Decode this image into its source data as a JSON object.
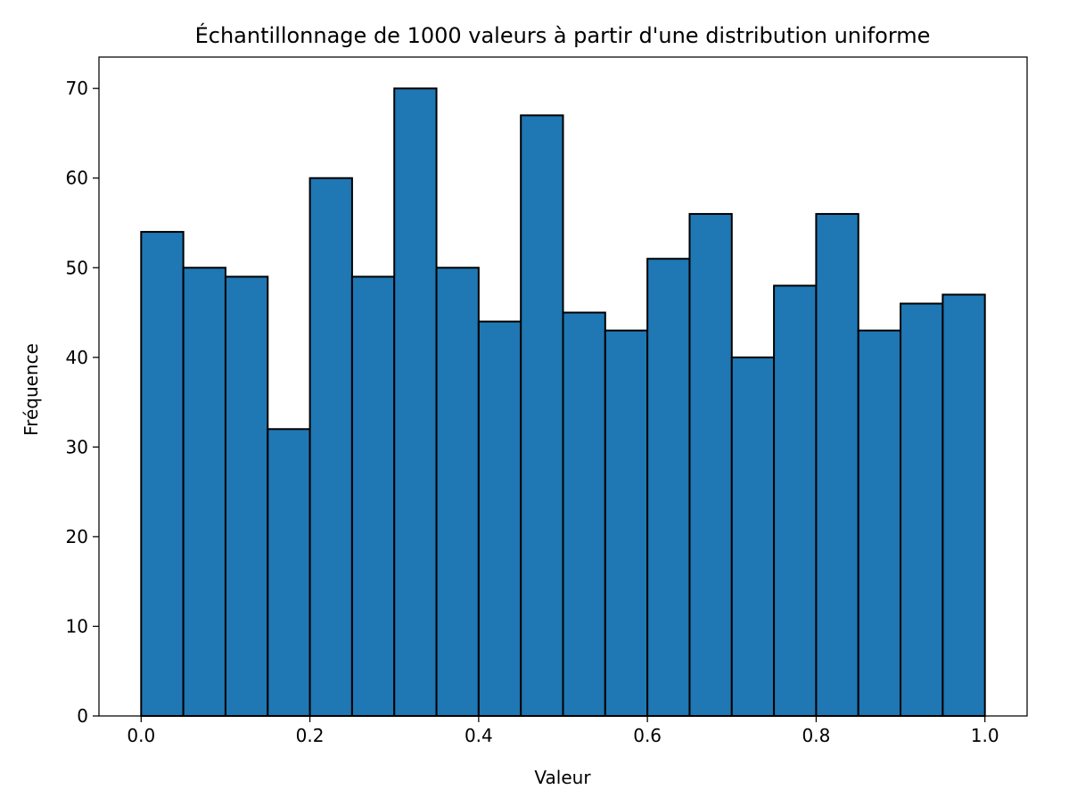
{
  "chart_data": {
    "type": "bar",
    "title": "Échantillonnage de 1000 valeurs à partir d'une distribution uniforme",
    "xlabel": "Valeur",
    "ylabel": "Fréquence",
    "bin_edges": [
      0.0,
      0.05,
      0.1,
      0.15,
      0.2,
      0.25,
      0.3,
      0.35,
      0.4,
      0.45,
      0.5,
      0.55,
      0.6,
      0.65,
      0.7,
      0.75,
      0.8,
      0.85,
      0.9,
      0.95,
      1.0
    ],
    "values": [
      54,
      50,
      49,
      32,
      60,
      49,
      70,
      50,
      44,
      67,
      45,
      43,
      51,
      56,
      40,
      48,
      56,
      43,
      46,
      47
    ],
    "xlim": [
      -0.05,
      1.05
    ],
    "ylim": [
      0,
      73.5
    ],
    "xticks": [
      "0.0",
      "0.2",
      "0.4",
      "0.6",
      "0.8",
      "1.0"
    ],
    "xtick_values": [
      0.0,
      0.2,
      0.4,
      0.6,
      0.8,
      1.0
    ],
    "yticks": [
      "0",
      "10",
      "20",
      "30",
      "40",
      "50",
      "60",
      "70"
    ],
    "ytick_values": [
      0,
      10,
      20,
      30,
      40,
      50,
      60,
      70
    ],
    "bar_color": "#1f77b4",
    "edge_color": "#000000",
    "grid": false,
    "legend": "none"
  }
}
